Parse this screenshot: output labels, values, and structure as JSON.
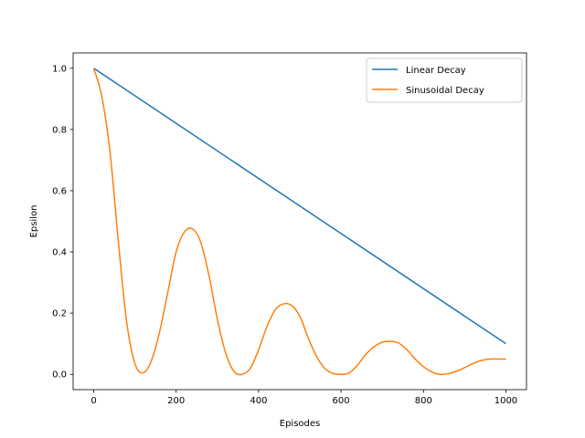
{
  "chart_data": {
    "type": "line",
    "title": "",
    "xlabel": "Episodes",
    "ylabel": "Epsilon",
    "xlim": [
      -50,
      1050
    ],
    "ylim": [
      -0.05,
      1.05
    ],
    "xticks": [
      0,
      200,
      400,
      600,
      800,
      1000
    ],
    "yticks": [
      0.0,
      0.2,
      0.4,
      0.6,
      0.8,
      1.0
    ],
    "xtick_labels": [
      "0",
      "200",
      "400",
      "600",
      "800",
      "1000"
    ],
    "ytick_labels": [
      "0.0",
      "0.2",
      "0.4",
      "0.6",
      "0.8",
      "1.0"
    ],
    "grid": false,
    "legend_position": "top-right",
    "series": [
      {
        "name": "Linear Decay",
        "color": "#1f77b4",
        "x": [
          0,
          1000
        ],
        "y": [
          1.0,
          0.1
        ]
      },
      {
        "name": "Sinusoidal Decay",
        "color": "#ff7f0e",
        "x": [
          0,
          20,
          40,
          60,
          80,
          100,
          120,
          140,
          160,
          180,
          200,
          220,
          240,
          260,
          280,
          300,
          320,
          340,
          360,
          380,
          400,
          420,
          440,
          460,
          480,
          500,
          520,
          540,
          560,
          580,
          600,
          620,
          640,
          660,
          680,
          700,
          720,
          740,
          760,
          780,
          800,
          820,
          840,
          860,
          880,
          900,
          920,
          940,
          960,
          980,
          1000
        ],
        "y": [
          1.0,
          0.905,
          0.72,
          0.43,
          0.17,
          0.035,
          0.005,
          0.045,
          0.14,
          0.27,
          0.4,
          0.465,
          0.475,
          0.43,
          0.32,
          0.18,
          0.07,
          0.01,
          0.0,
          0.02,
          0.08,
          0.155,
          0.21,
          0.23,
          0.225,
          0.19,
          0.12,
          0.06,
          0.02,
          0.003,
          0.0,
          0.005,
          0.03,
          0.065,
          0.09,
          0.105,
          0.108,
          0.102,
          0.08,
          0.05,
          0.025,
          0.008,
          0.0,
          0.002,
          0.01,
          0.022,
          0.035,
          0.045,
          0.05,
          0.05,
          0.05
        ]
      }
    ]
  }
}
